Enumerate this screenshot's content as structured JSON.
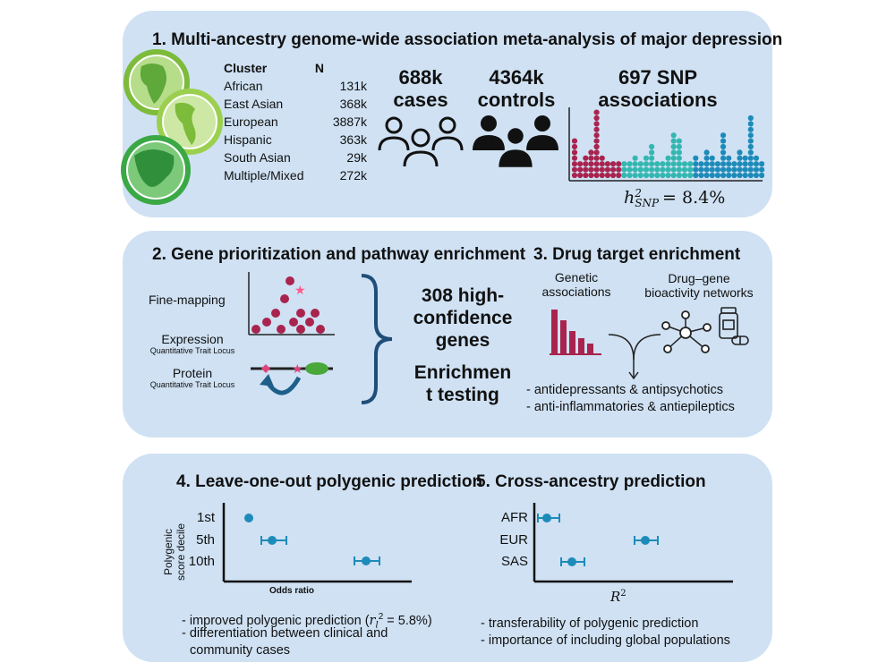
{
  "panel1": {
    "title": "1. Multi-ancestry genome-wide association meta-analysis of major depression",
    "table": {
      "headers": [
        "Cluster",
        "N"
      ],
      "rows": [
        [
          "African",
          "131k"
        ],
        [
          "East Asian",
          "368k"
        ],
        [
          "European",
          "3887k"
        ],
        [
          "Hispanic",
          "363k"
        ],
        [
          "South Asian",
          "29k"
        ],
        [
          "Multiple/Mixed",
          "272k"
        ]
      ]
    },
    "cases": {
      "value": "688k",
      "label": "cases"
    },
    "controls": {
      "value": "4364k",
      "label": "controls"
    },
    "snp": {
      "value": "697 SNP",
      "label": "associations"
    },
    "heritability": {
      "symbol": "h",
      "sup": "2",
      "sub": "SNP",
      "value": "= 8.4%"
    },
    "manhattan_counts": {
      "red": [
        7,
        3,
        4,
        5,
        12,
        4,
        3,
        3,
        3
      ],
      "teal": [
        3,
        3,
        4,
        3,
        4,
        6,
        3,
        3,
        4,
        8,
        7,
        3,
        3
      ],
      "blue": [
        4,
        3,
        5,
        4,
        3,
        8,
        4,
        3,
        5,
        4,
        11,
        4,
        3
      ]
    },
    "colors": {
      "red": "#a8244e",
      "teal": "#33b7b0",
      "blue": "#1d8bb9",
      "green": "#3aa845"
    }
  },
  "panel2": {
    "title": "2. Gene prioritization and pathway enrichment",
    "fine_mapping": "Fine-mapping",
    "expression": "Expression",
    "expression_sub": "Quantitative Trait Locus",
    "protein": "Protein",
    "protein_sub": "Quantitative Trait Locus",
    "genes_lines": [
      "308 high-",
      "confidence",
      "genes"
    ],
    "enrich_lines": [
      "Enrichmen",
      "t testing"
    ]
  },
  "panel3": {
    "title": "3. Drug target enrichment",
    "genetic_lines": [
      "Genetic",
      "associations"
    ],
    "network_lines": [
      "Drug–gene",
      "bioactivity networks"
    ],
    "bullets": [
      "- antidepressants & antipsychotics",
      "- anti-inflammatories & antiepileptics"
    ]
  },
  "panel4": {
    "title": "4. Leave-one-out polygenic prediction",
    "ylabel_lines": [
      "Polygenic",
      "score decile"
    ],
    "xlabel": "Odds ratio",
    "deciles": [
      "1st",
      "5th",
      "10th"
    ],
    "bullet1_pre": "- improved polygenic prediction (",
    "bullet1_math": "r",
    "bullet1_sub": "l",
    "bullet1_sup": "2",
    "bullet1_post": " = 5.8%)",
    "bullet2_lines": [
      "- differentiation between clinical and",
      "community cases"
    ]
  },
  "panel5": {
    "title": "5. Cross-ancestry prediction",
    "ancestries": [
      "AFR",
      "EUR",
      "SAS"
    ],
    "xlabel": "R",
    "xlabel_sup": "2",
    "bullets": [
      "- transferability of polygenic prediction",
      "- importance of including global populations"
    ]
  }
}
